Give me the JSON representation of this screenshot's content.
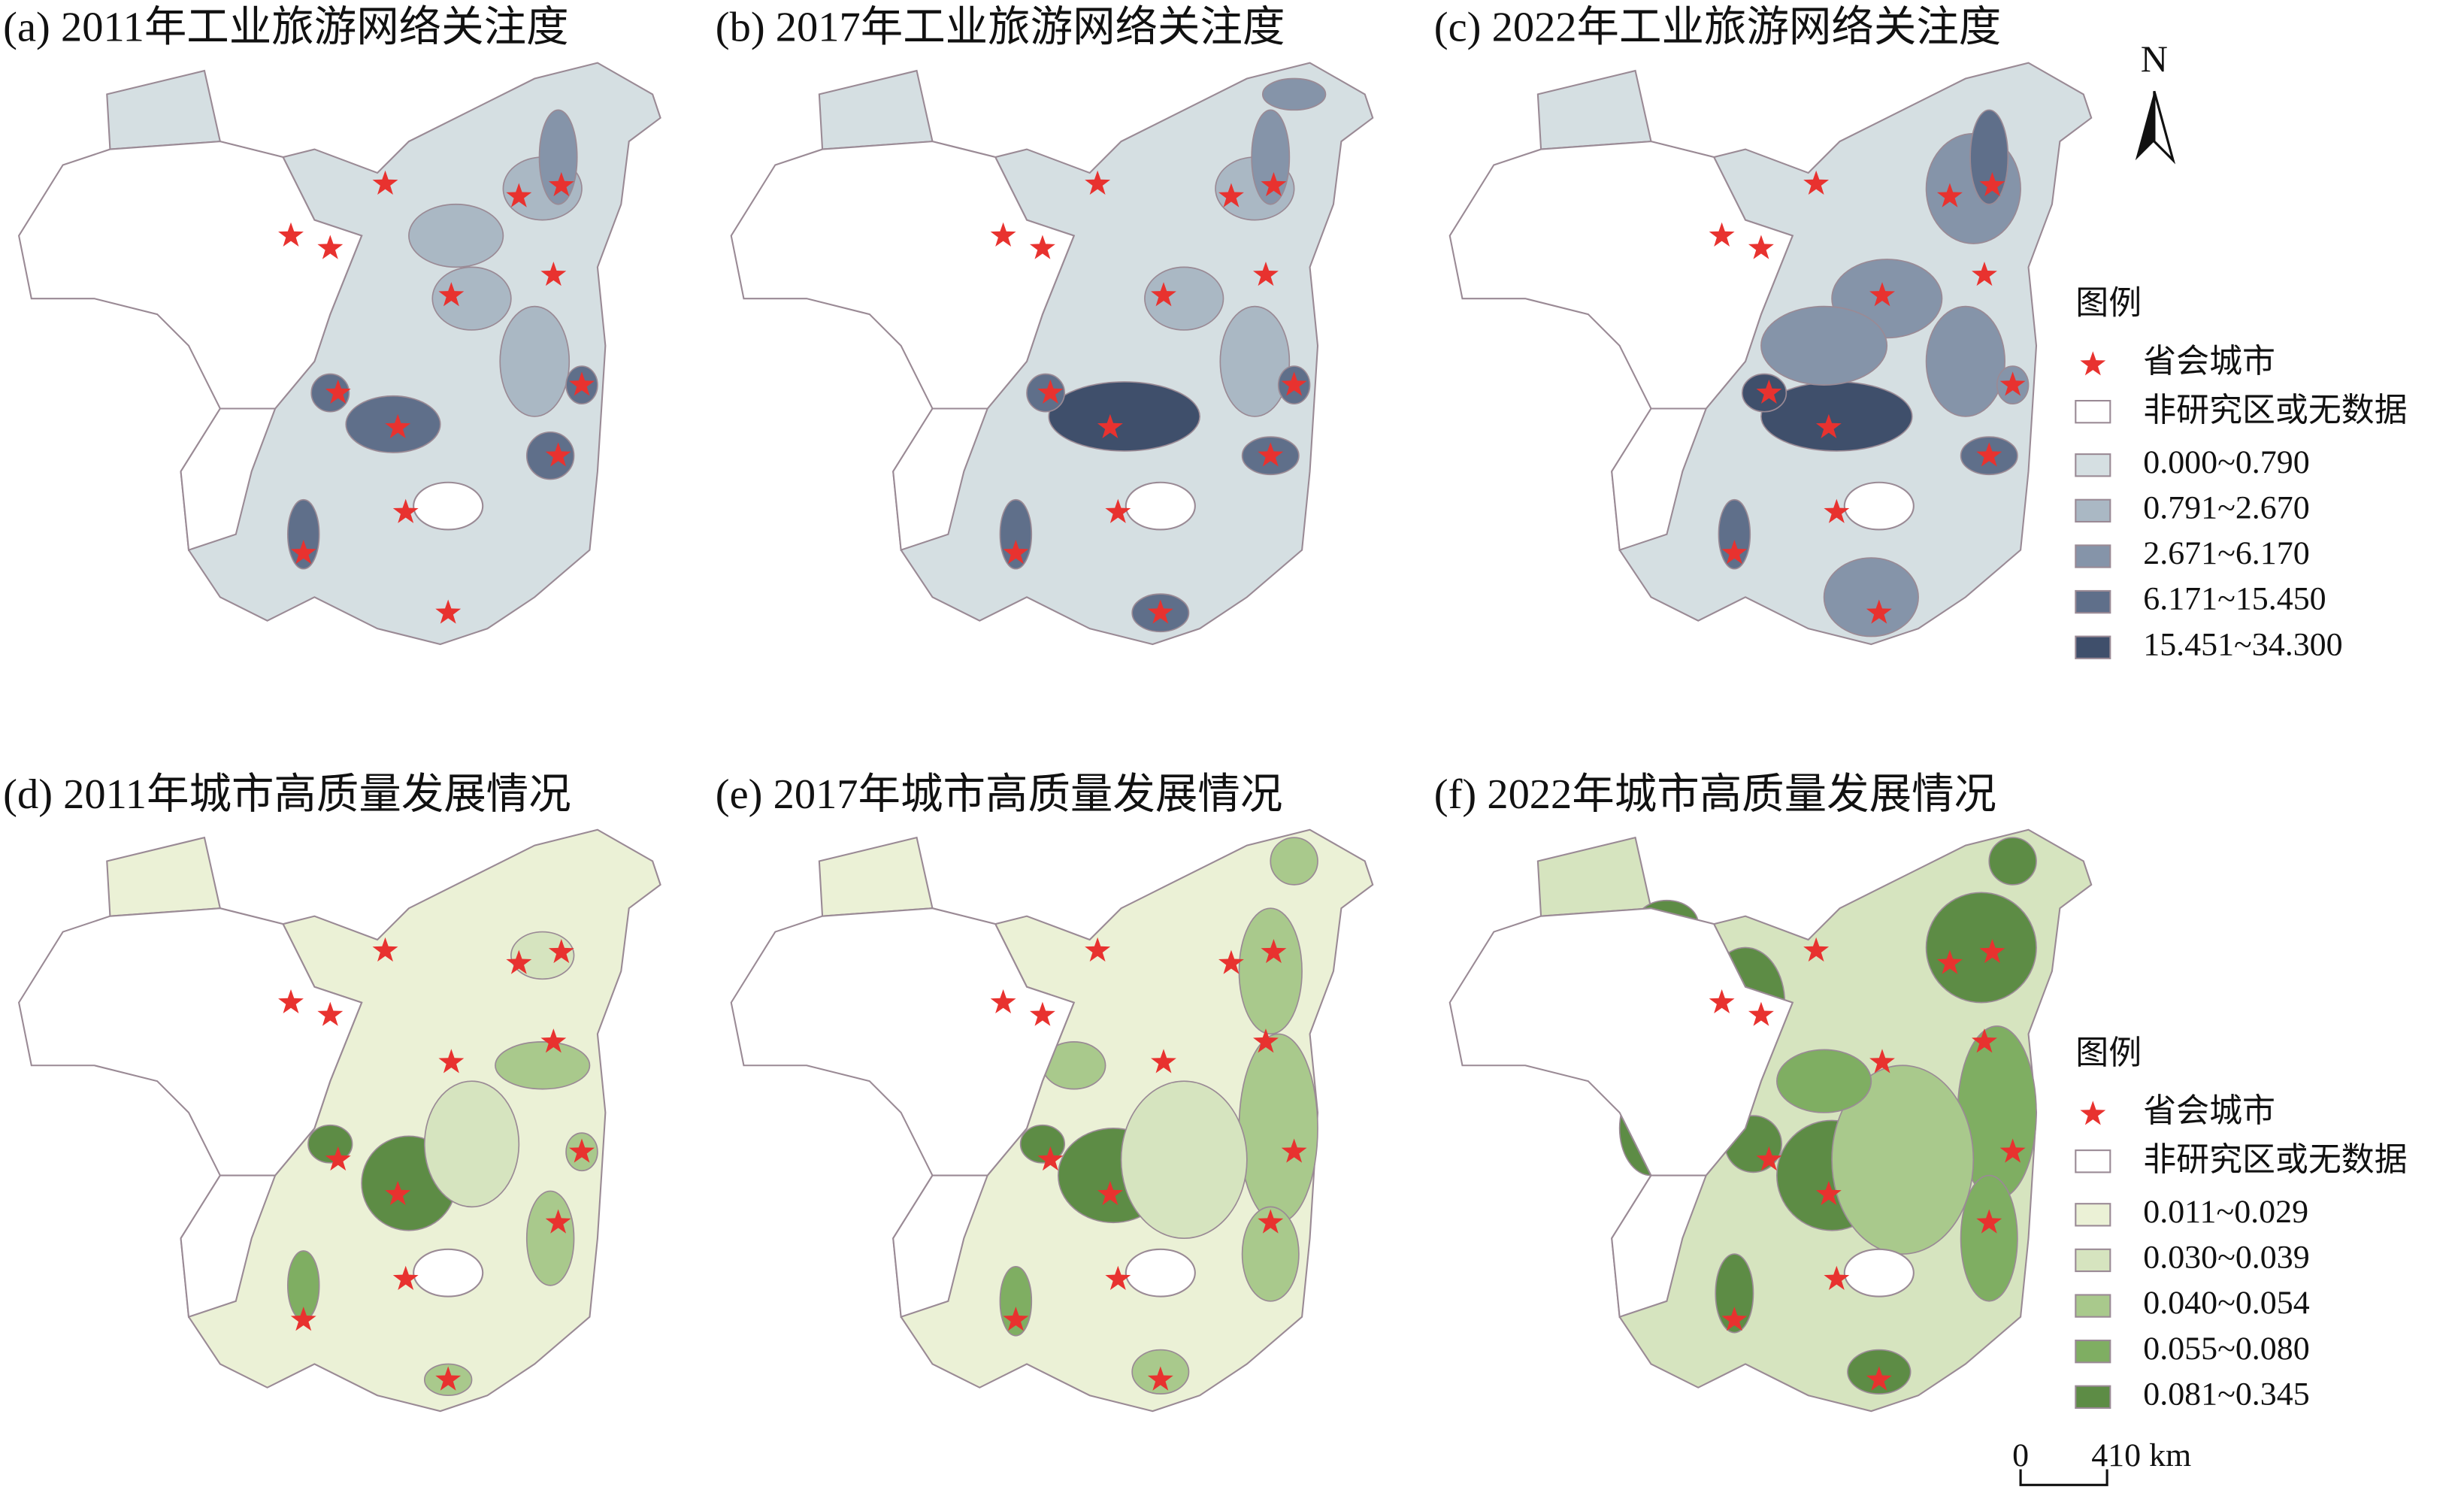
{
  "panels": [
    {
      "title": "(a) 2011年工业旅游网络关注度"
    },
    {
      "title": "(b) 2017年工业旅游网络关注度"
    },
    {
      "title": "(c) 2022年工业旅游网络关注度"
    },
    {
      "title": "(d) 2011年城市高质量发展情况"
    },
    {
      "title": "(e) 2017年城市高质量发展情况"
    },
    {
      "title": "(f) 2022年城市高质量发展情况"
    }
  ],
  "legends": [
    {
      "title": "图例",
      "capital": "省会城市",
      "none": "非研究区或无数据",
      "classes": [
        {
          "label": "0.000~0.790",
          "color": "#d5dfe2"
        },
        {
          "label": "0.791~2.670",
          "color": "#aab8c4"
        },
        {
          "label": "2.671~6.170",
          "color": "#8594a9"
        },
        {
          "label": "6.171~15.450",
          "color": "#5f6f8a"
        },
        {
          "label": "15.451~34.300",
          "color": "#3f4f6b"
        }
      ]
    },
    {
      "title": "图例",
      "capital": "省会城市",
      "none": "非研究区或无数据",
      "classes": [
        {
          "label": "0.011~0.029",
          "color": "#ebf1d6"
        },
        {
          "label": "0.030~0.039",
          "color": "#d6e4bf"
        },
        {
          "label": "0.040~0.054",
          "color": "#a9c98c"
        },
        {
          "label": "0.055~0.080",
          "color": "#7fae62"
        },
        {
          "label": "0.081~0.345",
          "color": "#5d8c45"
        }
      ]
    }
  ],
  "north": "N",
  "scale_bar": {
    "start": "0",
    "end": "410 km"
  }
}
